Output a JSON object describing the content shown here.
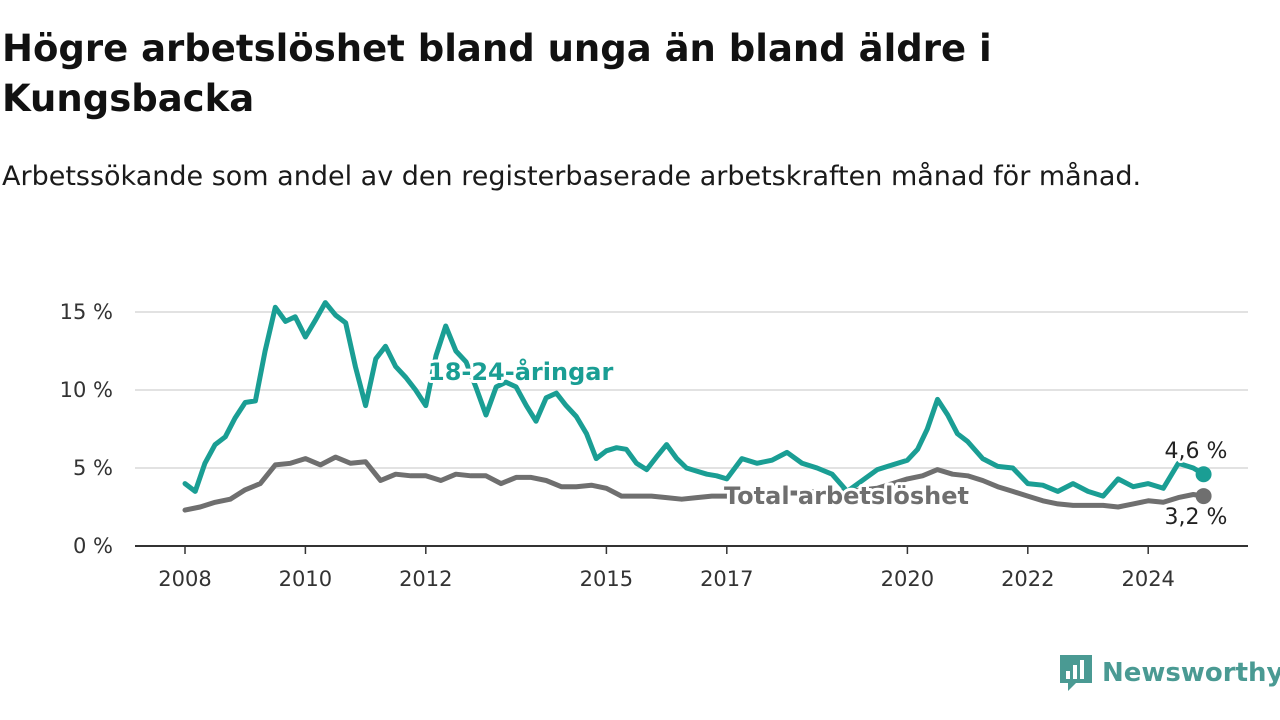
{
  "title": "Högre arbetslöshet bland unga än bland äldre i Kungsbacka",
  "subtitle": "Arbetssökande som andel av den registerbaserade arbetskraften månad för månad.",
  "brand": {
    "name": "Newsworthy",
    "color": "#4a9a93"
  },
  "chart_data": {
    "type": "line",
    "title": "Högre arbetslöshet bland unga än bland äldre i Kungsbacka",
    "subtitle": "Arbetssökande som andel av den registerbaserade arbetskraften månad för månad.",
    "xlabel": "",
    "ylabel": "",
    "ylim": [
      0,
      15
    ],
    "xlim": [
      2007.5,
      2026.5
    ],
    "grid": true,
    "legend": "inline labels",
    "yticks": [
      0,
      5,
      10,
      15
    ],
    "ytick_labels": [
      "0 %",
      "5 %",
      "10 %",
      "15 %"
    ],
    "xticks": [
      2008,
      2010,
      2012,
      2015,
      2017,
      2020,
      2022,
      2024
    ],
    "xtick_labels": [
      "2008",
      "2010",
      "2012",
      "2015",
      "2017",
      "2020",
      "2022",
      "2024"
    ],
    "series": [
      {
        "name": "18-24-åringar",
        "color": "#1a9e94",
        "end_label": "4,6 %",
        "x": [
          2008.0,
          2008.17,
          2008.33,
          2008.5,
          2008.67,
          2008.83,
          2009.0,
          2009.17,
          2009.33,
          2009.5,
          2009.67,
          2009.83,
          2010.0,
          2010.17,
          2010.33,
          2010.5,
          2010.67,
          2010.83,
          2011.0,
          2011.17,
          2011.33,
          2011.5,
          2011.67,
          2011.83,
          2012.0,
          2012.17,
          2012.33,
          2012.5,
          2012.67,
          2012.83,
          2013.0,
          2013.17,
          2013.33,
          2013.5,
          2013.67,
          2013.83,
          2014.0,
          2014.17,
          2014.33,
          2014.5,
          2014.67,
          2014.83,
          2015.0,
          2015.17,
          2015.33,
          2015.5,
          2015.67,
          2015.83,
          2016.0,
          2016.17,
          2016.33,
          2016.5,
          2016.67,
          2016.83,
          2017.0,
          2017.25,
          2017.5,
          2017.75,
          2018.0,
          2018.25,
          2018.5,
          2018.75,
          2019.0,
          2019.25,
          2019.5,
          2019.75,
          2020.0,
          2020.17,
          2020.33,
          2020.5,
          2020.67,
          2020.83,
          2021.0,
          2021.25,
          2021.5,
          2021.75,
          2022.0,
          2022.25,
          2022.5,
          2022.75,
          2023.0,
          2023.25,
          2023.5,
          2023.75,
          2024.0,
          2024.25,
          2024.5,
          2024.75,
          2024.92
        ],
        "y": [
          4.0,
          3.5,
          5.3,
          6.5,
          7.0,
          8.2,
          9.2,
          9.3,
          12.5,
          15.3,
          14.4,
          14.7,
          13.4,
          14.5,
          15.6,
          14.8,
          14.3,
          11.5,
          9.0,
          12.0,
          12.8,
          11.5,
          10.8,
          10.0,
          9.0,
          12.2,
          14.1,
          12.5,
          11.8,
          10.2,
          8.4,
          10.2,
          10.5,
          10.2,
          9.0,
          8.0,
          9.5,
          9.8,
          9.0,
          8.3,
          7.2,
          5.6,
          6.1,
          6.3,
          6.2,
          5.3,
          4.9,
          5.7,
          6.5,
          5.6,
          5.0,
          4.8,
          4.6,
          4.5,
          4.3,
          5.6,
          5.3,
          5.5,
          6.0,
          5.3,
          5.0,
          4.6,
          3.5,
          4.2,
          4.9,
          5.2,
          5.5,
          6.2,
          7.5,
          9.4,
          8.4,
          7.2,
          6.7,
          5.6,
          5.1,
          5.0,
          4.0,
          3.9,
          3.5,
          4.0,
          3.5,
          3.2,
          4.3,
          3.8,
          4.0,
          3.7,
          5.3,
          5.0,
          4.6
        ]
      },
      {
        "name": "Total arbetslöshet",
        "color": "#6f6f6f",
        "end_label": "3,2 %",
        "x": [
          2008.0,
          2008.25,
          2008.5,
          2008.75,
          2009.0,
          2009.25,
          2009.5,
          2009.75,
          2010.0,
          2010.25,
          2010.5,
          2010.75,
          2011.0,
          2011.25,
          2011.5,
          2011.75,
          2012.0,
          2012.25,
          2012.5,
          2012.75,
          2013.0,
          2013.25,
          2013.5,
          2013.75,
          2014.0,
          2014.25,
          2014.5,
          2014.75,
          2015.0,
          2015.25,
          2015.5,
          2015.75,
          2016.0,
          2016.25,
          2016.5,
          2016.75,
          2017.0,
          2017.25,
          2017.5,
          2017.75,
          2018.0,
          2018.25,
          2018.5,
          2018.75,
          2019.0,
          2019.25,
          2019.5,
          2019.75,
          2020.0,
          2020.25,
          2020.5,
          2020.75,
          2021.0,
          2021.25,
          2021.5,
          2021.75,
          2022.0,
          2022.25,
          2022.5,
          2022.75,
          2023.0,
          2023.25,
          2023.5,
          2023.75,
          2024.0,
          2024.25,
          2024.5,
          2024.75,
          2024.92
        ],
        "y": [
          2.3,
          2.5,
          2.8,
          3.0,
          3.6,
          4.0,
          5.2,
          5.3,
          5.6,
          5.2,
          5.7,
          5.3,
          5.4,
          4.2,
          4.6,
          4.5,
          4.5,
          4.2,
          4.6,
          4.5,
          4.5,
          4.0,
          4.4,
          4.4,
          4.2,
          3.8,
          3.8,
          3.9,
          3.7,
          3.2,
          3.2,
          3.2,
          3.1,
          3.0,
          3.1,
          3.2,
          3.2,
          3.3,
          3.3,
          3.4,
          3.4,
          3.4,
          3.5,
          3.5,
          3.5,
          3.6,
          3.7,
          4.0,
          4.3,
          4.5,
          4.9,
          4.6,
          4.5,
          4.2,
          3.8,
          3.5,
          3.2,
          2.9,
          2.7,
          2.6,
          2.6,
          2.6,
          2.5,
          2.7,
          2.9,
          2.8,
          3.1,
          3.3,
          3.2
        ]
      }
    ]
  }
}
